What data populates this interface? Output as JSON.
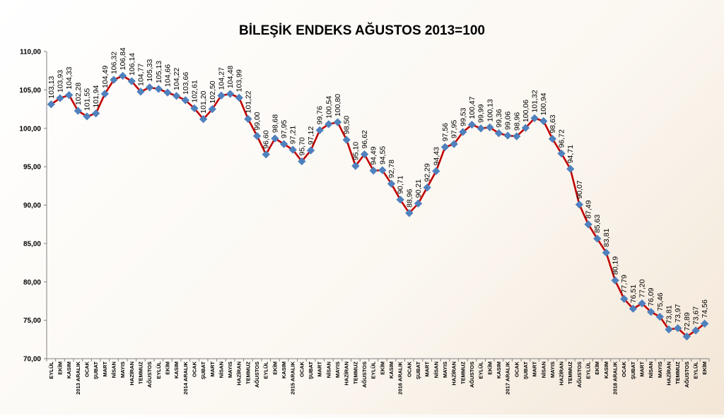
{
  "chart_data": {
    "type": "line",
    "title": "BİLEŞİK ENDEKS AĞUSTOS 2013=100",
    "xlabel": "",
    "ylabel": "",
    "ylim": [
      70,
      110
    ],
    "yticks": [
      "70,00",
      "75,00",
      "80,00",
      "85,00",
      "90,00",
      "95,00",
      "100,00",
      "105,00",
      "110,00"
    ],
    "grid": "none",
    "legend": "none",
    "colors": {
      "line": "#c00000",
      "marker": "#4f81bd",
      "axis": "#808080"
    },
    "categories": [
      "EYLÜL",
      "EKİM",
      "KASIM",
      "2013 ARALIK",
      "OCAK",
      "ŞUBAT",
      "MART",
      "NİSAN",
      "MAYIS",
      "HAZİRAN",
      "TEMMUZ",
      "AĞUSTOS",
      "EYLÜL",
      "EKİM",
      "KASIM",
      "2014 ARALIK",
      "OCAK",
      "ŞUBAT",
      "MART",
      "NİSAN",
      "MAYIS",
      "HAZİRAN",
      "TEMMUZ",
      "AĞUSTOS",
      "EYLÜL",
      "EKİM",
      "KASIM",
      "2015 ARALIK",
      "OCAK",
      "ŞUBAT",
      "MART",
      "NİSAN",
      "MAYIS",
      "HAZİRAN",
      "TEMMUZ",
      "AĞUSTOS",
      "EYLÜL",
      "EKİM",
      "KASIM",
      "2016 ARALIK",
      "OCAK",
      "ŞUBAT",
      "MART",
      "NİSAN",
      "MAYIS",
      "HAZİRAN",
      "TEMMUZ",
      "AĞUSTOS",
      "EYLÜL",
      "EKİM",
      "KASIM",
      "2017 ARALIK",
      "OCAK",
      "ŞUBAT",
      "MART",
      "NİSAN",
      "MAYIS",
      "HAZİRAN",
      "TEMMUZ",
      "AĞUSTOS",
      "EYLÜL",
      "EKİM",
      "KASIM",
      "2018 ARALIK",
      "OCAK",
      "ŞUBAT",
      "MART",
      "NİSAN",
      "MAYIS",
      "HAZİRAN",
      "TEMMUZ",
      "AĞUSTOS",
      "EYLÜL",
      "EKİM"
    ],
    "values": [
      103.13,
      103.93,
      104.33,
      102.28,
      101.55,
      101.94,
      104.49,
      106.32,
      106.84,
      106.14,
      104.77,
      105.33,
      105.13,
      104.66,
      104.22,
      103.66,
      102.61,
      101.2,
      102.5,
      104.27,
      104.48,
      103.99,
      101.22,
      99.0,
      96.6,
      98.68,
      97.95,
      97.21,
      95.7,
      97.12,
      99.76,
      100.54,
      100.8,
      98.5,
      95.1,
      96.62,
      94.49,
      94.55,
      92.78,
      90.71,
      88.96,
      90.21,
      92.29,
      94.43,
      97.56,
      97.95,
      99.53,
      100.47,
      99.99,
      100.13,
      99.36,
      99.06,
      98.96,
      100.06,
      101.32,
      100.94,
      98.63,
      96.72,
      94.71,
      90.07,
      87.49,
      85.63,
      83.81,
      80.19,
      77.79,
      76.51,
      77.2,
      76.09,
      75.46,
      73.81,
      73.97,
      72.89,
      73.67,
      74.56
    ],
    "labels": [
      "103,13",
      "103,93",
      "104,33",
      "102,28",
      "101,55",
      "101,94",
      "104,49",
      "106,32",
      "106,84",
      "106,14",
      "104,77",
      "105,33",
      "105,13",
      "104,66",
      "104,22",
      "103,66",
      "102,61",
      "101,20",
      "102,50",
      "104,27",
      "104,48",
      "103,99",
      "101,22",
      "99,00",
      "96,60",
      "98,68",
      "97,95",
      "97,21",
      "95,70",
      "97,12",
      "99,76",
      "100,54",
      "100,80",
      "98,50",
      "95,10",
      "96,62",
      "94,49",
      "94,55",
      "92,78",
      "90,71",
      "88,96",
      "90,21",
      "92,29",
      "94,43",
      "97,56",
      "97,95",
      "99,53",
      "100,47",
      "99,99",
      "100,13",
      "99,36",
      "99,06",
      "98,96",
      "100,06",
      "101,32",
      "100,94",
      "98,63",
      "96,72",
      "94,71",
      "90,07",
      "87,49",
      "85,63",
      "83,81",
      "80,19",
      "77,79",
      "76,51",
      "77,20",
      "76,09",
      "75,46",
      "73,81",
      "73,97",
      "72,89",
      "73,67",
      "74,56"
    ]
  }
}
